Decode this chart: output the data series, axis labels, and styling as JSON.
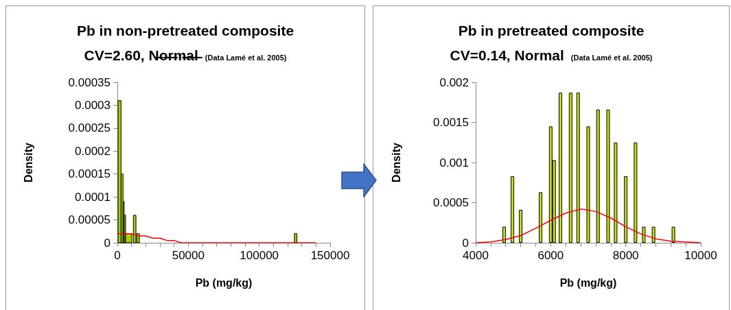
{
  "chart_data": [
    {
      "type": "histogram",
      "title": "Pb in non-pretreated composite",
      "subtitle": "CV=2.60, N̶o̶r̶m̶a̶l̶",
      "annotations": [
        "(Data Lamé et al. 2005)"
      ],
      "xlabel": "Pb (mg/kg)",
      "ylabel": "Density",
      "marker": "none",
      "xlim": [
        0,
        150000
      ],
      "xticks": [
        0,
        {
          "value": 10000,
          "label": null
        },
        {
          "value": 20000,
          "label": null
        },
        {
          "value": 30000,
          "label": null
        },
        {
          "value": 40000,
          "label": null
        },
        50000,
        {
          "value": 60000,
          "label": null
        },
        {
          "value": 70000,
          "label": null
        },
        {
          "value": 80000,
          "label": null
        },
        {
          "value": 90000,
          "label": null
        },
        100000,
        {
          "value": 110000,
          "label": null
        },
        {
          "value": 120000,
          "label": null
        },
        {
          "value": 130000,
          "label": null
        },
        {
          "value": 140000,
          "label": null
        },
        150000
      ],
      "ylim": [
        0,
        0.00035
      ],
      "yticks": [
        0,
        {
          "value": 5e-05,
          "label": "0.00005"
        },
        0.0001,
        0.00015,
        0.0002,
        0.00025,
        0.0003,
        0.00035
      ],
      "series": [
        {
          "color": "#a6cf00",
          "bins": [
            500,
            2600,
            4000,
            4800,
            5800,
            10200,
            11300,
            13100,
            13700,
            15500,
            124800,
            126600
          ],
          "values": [
            0.00031,
            0.00015,
            9e-05,
            6e-05,
            2e-05,
            0,
            6e-05,
            0,
            2e-05,
            0,
            2e-05
          ]
        },
        {
          "type": "line",
          "color": "#ff0000",
          "x": [
            0,
            5000,
            10000,
            15000,
            20000,
            25000,
            30000,
            35000,
            40000,
            45000,
            55000,
            75000,
            95000,
            115000,
            140000
          ],
          "values": [
            2e-05,
            2e-05,
            2e-05,
            1.5e-05,
            1.5e-05,
            1e-05,
            1e-05,
            5e-06,
            5e-06,
            0,
            0,
            0,
            0,
            0,
            0
          ]
        }
      ]
    },
    {
      "type": "bar",
      "title": "Pb in pretreated composite",
      "subtitle": "CV=0.14, Normal",
      "annotations": [
        "(Data Lamé et al. 2005)"
      ],
      "xlabel": "Pb (mg/kg)",
      "ylabel": "Density",
      "marker": "none",
      "xlim": [
        4000,
        10000
      ],
      "xticks": [
        4000,
        {
          "value": 4400,
          "label": null
        },
        {
          "value": 4800,
          "label": null
        },
        {
          "value": 5200,
          "label": null
        },
        {
          "value": 5600,
          "label": null
        },
        6000,
        {
          "value": 6400,
          "label": null
        },
        {
          "value": 6800,
          "label": null
        },
        {
          "value": 7200,
          "label": null
        },
        {
          "value": 7600,
          "label": null
        },
        8000,
        {
          "value": 8400,
          "label": null
        },
        {
          "value": 8800,
          "label": null
        },
        {
          "value": 9200,
          "label": null
        },
        {
          "value": 9600,
          "label": null
        },
        10000
      ],
      "ylim": [
        0,
        0.002
      ],
      "yticks": [
        0,
        0.0005,
        0.001,
        0.0015,
        0.002
      ],
      "series": [
        {
          "color": "#c8dc00",
          "x": [
            4760,
            4980,
            5200,
            5730,
            6000,
            6090,
            6260,
            6530,
            6730,
            7000,
            7260,
            7530,
            7730,
            8000,
            8260,
            8480,
            8740,
            9270
          ],
          "values": [
            0.0002,
            0.00083,
            0.00041,
            0.00063,
            0.00145,
            0.00103,
            0.00187,
            0.00187,
            0.00187,
            0.00145,
            0.00166,
            0.00166,
            0.00125,
            0.00083,
            0.00125,
            0.0002,
            0.0002,
            0.0002
          ]
        },
        {
          "type": "line",
          "color": "#ff0000",
          "x": [
            4000,
            4400,
            4800,
            5200,
            5600,
            6000,
            6400,
            6800,
            7200,
            7600,
            8000,
            8400,
            8800,
            9200,
            9600,
            10000
          ],
          "values": [
            0,
            1e-05,
            4e-05,
            9e-05,
            0.00018,
            0.00028,
            0.00037,
            0.00042,
            0.00039,
            0.00031,
            0.0002,
            0.00011,
            5e-05,
            2e-05,
            1e-05,
            0
          ]
        }
      ]
    }
  ]
}
